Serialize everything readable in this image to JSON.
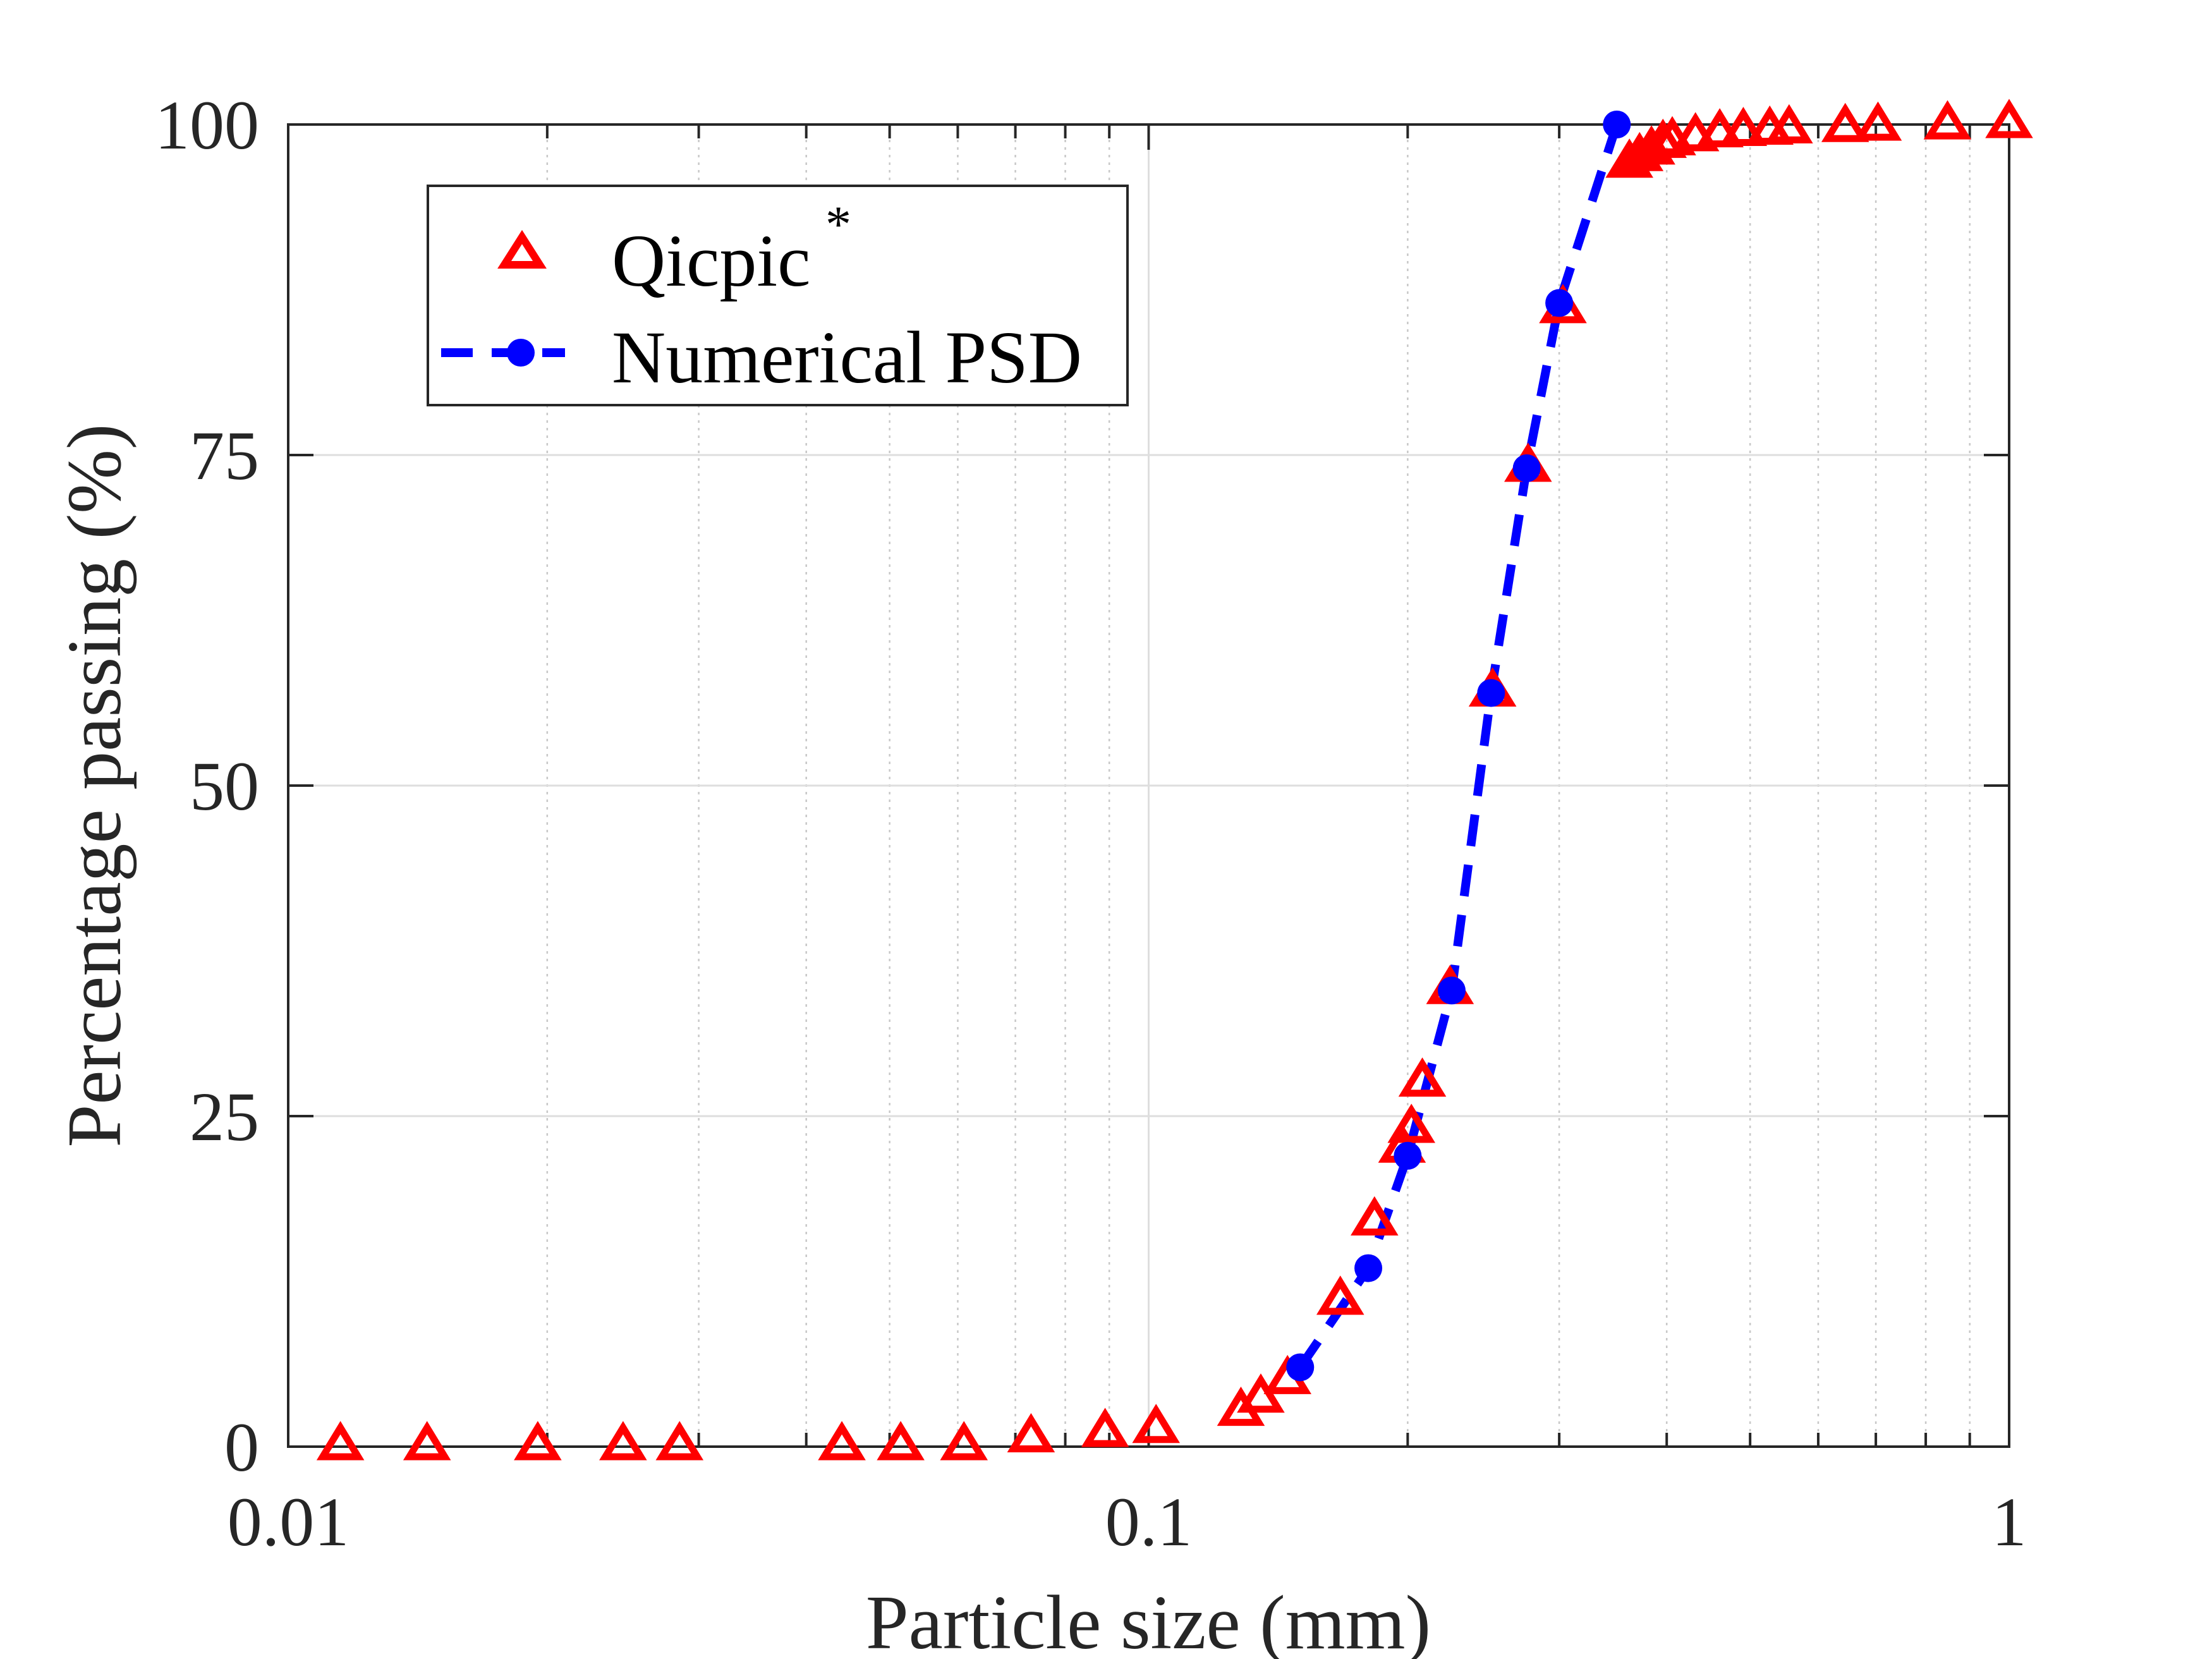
{
  "chart_data": {
    "type": "scatter",
    "title": "",
    "xlabel": "Particle size (mm)",
    "ylabel": "Percentage passing (%)",
    "xscale": "log",
    "xlim": [
      0.01,
      1
    ],
    "ylim": [
      0,
      100
    ],
    "xticks": [
      {
        "value": 0.01,
        "label": "0.01"
      },
      {
        "value": 0.1,
        "label": "0.1"
      },
      {
        "value": 1,
        "label": "1"
      }
    ],
    "yticks": [
      {
        "value": 0,
        "label": "0"
      },
      {
        "value": 25,
        "label": "25"
      },
      {
        "value": 50,
        "label": "50"
      },
      {
        "value": 75,
        "label": "75"
      },
      {
        "value": 100,
        "label": "100"
      }
    ],
    "grid": true,
    "legend_position": "top-left",
    "series": [
      {
        "name": "Qicpic",
        "name_superscript": "*",
        "marker": "triangle-open",
        "line": "none",
        "color": "#ff0000",
        "x": [
          0.0115,
          0.0145,
          0.0195,
          0.0245,
          0.0285,
          0.044,
          0.0515,
          0.061,
          0.073,
          0.089,
          0.102,
          0.128,
          0.135,
          0.145,
          0.167,
          0.183,
          0.197,
          0.202,
          0.208,
          0.224,
          0.251,
          0.276,
          0.303,
          0.362,
          0.372,
          0.384,
          0.396,
          0.406,
          0.432,
          0.461,
          0.491,
          0.527,
          0.555,
          0.645,
          0.704,
          0.848,
          1.0
        ],
        "y": [
          0,
          0,
          0,
          0,
          0,
          0,
          0,
          0,
          0.6,
          1.0,
          1.3,
          2.6,
          3.6,
          5.0,
          11.0,
          17.0,
          22.5,
          24.0,
          27.5,
          34.5,
          57.0,
          74.0,
          86.0,
          97.0,
          97.5,
          98.0,
          98.5,
          98.7,
          99.0,
          99.3,
          99.4,
          99.5,
          99.6,
          99.7,
          99.8,
          99.9,
          100
        ]
      },
      {
        "name": "Numerical PSD",
        "marker": "circle-filled",
        "line": "dashed",
        "color": "#0000ff",
        "x": [
          0.15,
          0.18,
          0.2,
          0.225,
          0.25,
          0.275,
          0.3,
          0.35
        ],
        "y": [
          6,
          13.5,
          22,
          34.5,
          57,
          74,
          86.5,
          100
        ]
      }
    ]
  }
}
